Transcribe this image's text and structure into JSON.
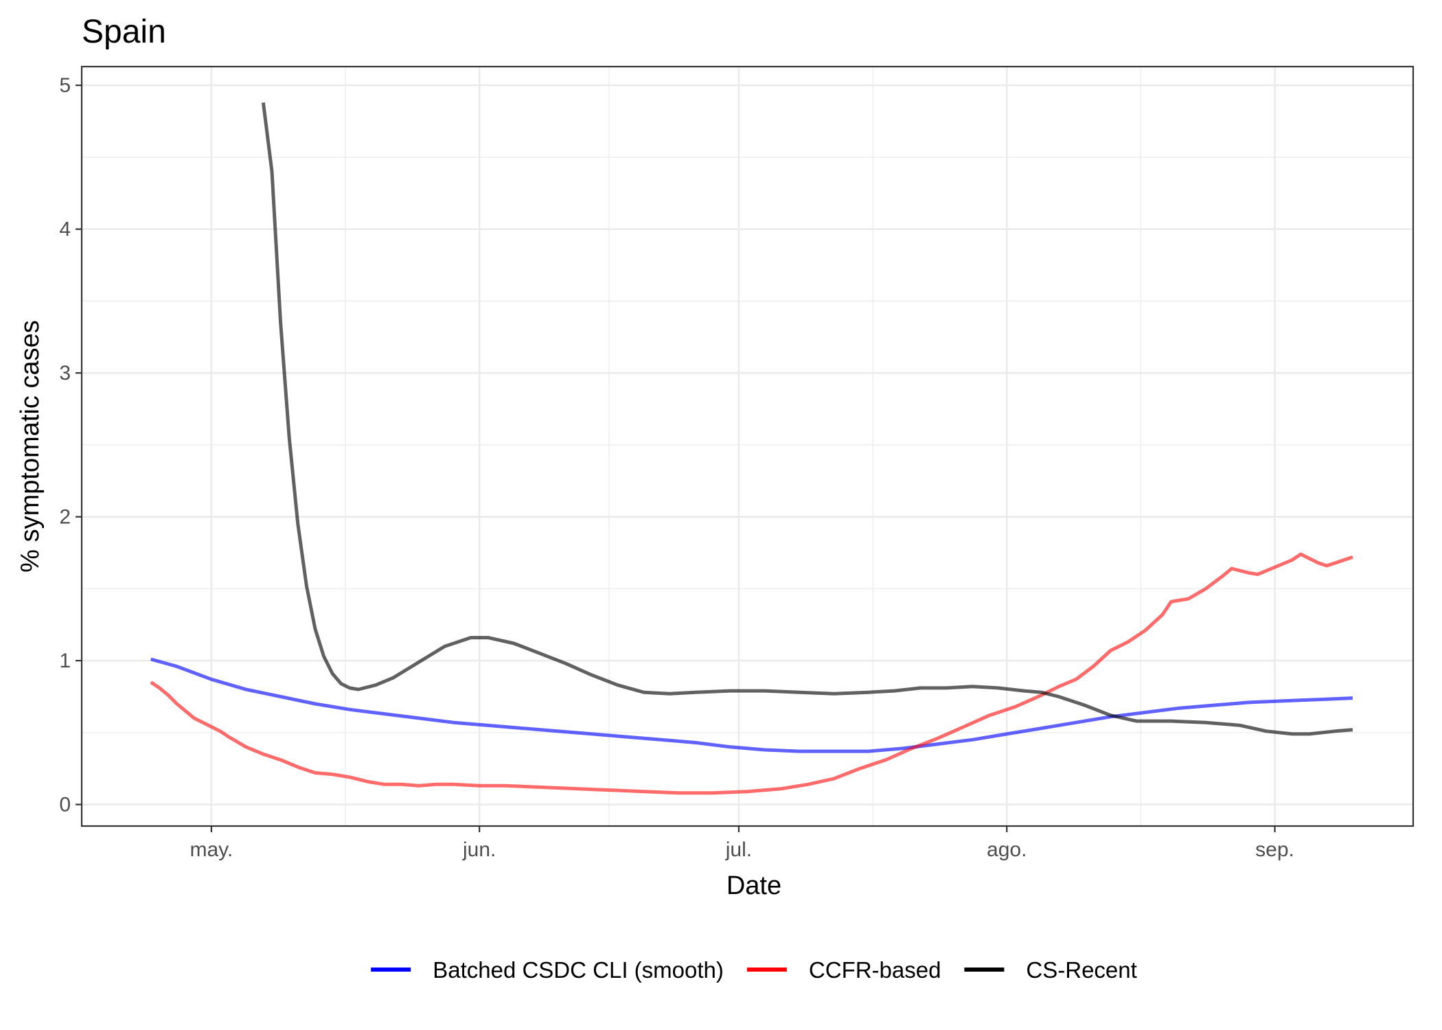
{
  "chart_data": {
    "type": "line",
    "title": "Spain",
    "xlabel": "Date",
    "ylabel": "% symptomatic cases",
    "xlim": [
      "2020-04-16",
      "2020-09-17"
    ],
    "ylim": [
      -0.15,
      5.13
    ],
    "x_ticks": [
      {
        "date": "2020-05-01",
        "label": "may."
      },
      {
        "date": "2020-06-01",
        "label": "jun."
      },
      {
        "date": "2020-07-01",
        "label": "jul."
      },
      {
        "date": "2020-08-01",
        "label": "ago."
      },
      {
        "date": "2020-09-01",
        "label": "sep."
      }
    ],
    "y_ticks": [
      0,
      1,
      2,
      3,
      4,
      5
    ],
    "grid": true,
    "legend_position": "bottom",
    "series": [
      {
        "name": "Batched CSDC CLI (smooth)",
        "color": "#0000FF",
        "legend_color": "#0000FF",
        "opacity": 0.62,
        "points": [
          [
            "2020-04-24",
            1.01
          ],
          [
            "2020-04-27",
            0.96
          ],
          [
            "2020-05-01",
            0.87
          ],
          [
            "2020-05-05",
            0.8
          ],
          [
            "2020-05-09",
            0.75
          ],
          [
            "2020-05-13",
            0.7
          ],
          [
            "2020-05-17",
            0.66
          ],
          [
            "2020-05-21",
            0.63
          ],
          [
            "2020-05-25",
            0.6
          ],
          [
            "2020-05-29",
            0.57
          ],
          [
            "2020-06-02",
            0.55
          ],
          [
            "2020-06-06",
            0.53
          ],
          [
            "2020-06-10",
            0.51
          ],
          [
            "2020-06-14",
            0.49
          ],
          [
            "2020-06-18",
            0.47
          ],
          [
            "2020-06-22",
            0.45
          ],
          [
            "2020-06-26",
            0.43
          ],
          [
            "2020-06-30",
            0.4
          ],
          [
            "2020-07-04",
            0.38
          ],
          [
            "2020-07-08",
            0.37
          ],
          [
            "2020-07-12",
            0.37
          ],
          [
            "2020-07-16",
            0.37
          ],
          [
            "2020-07-20",
            0.39
          ],
          [
            "2020-07-24",
            0.42
          ],
          [
            "2020-07-28",
            0.45
          ],
          [
            "2020-08-01",
            0.49
          ],
          [
            "2020-08-05",
            0.53
          ],
          [
            "2020-08-09",
            0.57
          ],
          [
            "2020-08-13",
            0.61
          ],
          [
            "2020-08-17",
            0.64
          ],
          [
            "2020-08-21",
            0.67
          ],
          [
            "2020-08-25",
            0.69
          ],
          [
            "2020-08-29",
            0.71
          ],
          [
            "2020-09-02",
            0.72
          ],
          [
            "2020-09-06",
            0.73
          ],
          [
            "2020-09-10",
            0.74
          ]
        ]
      },
      {
        "name": "CCFR-based",
        "color": "#FF0000",
        "legend_color": "#FF0000",
        "opacity": 0.58,
        "points": [
          [
            "2020-04-24",
            0.85
          ],
          [
            "2020-04-25",
            0.81
          ],
          [
            "2020-04-26",
            0.76
          ],
          [
            "2020-04-27",
            0.7
          ],
          [
            "2020-04-28",
            0.65
          ],
          [
            "2020-04-29",
            0.6
          ],
          [
            "2020-04-30",
            0.57
          ],
          [
            "2020-05-01",
            0.54
          ],
          [
            "2020-05-02",
            0.51
          ],
          [
            "2020-05-03",
            0.47
          ],
          [
            "2020-05-05",
            0.4
          ],
          [
            "2020-05-07",
            0.35
          ],
          [
            "2020-05-09",
            0.31
          ],
          [
            "2020-05-11",
            0.26
          ],
          [
            "2020-05-13",
            0.22
          ],
          [
            "2020-05-15",
            0.21
          ],
          [
            "2020-05-17",
            0.19
          ],
          [
            "2020-05-19",
            0.16
          ],
          [
            "2020-05-21",
            0.14
          ],
          [
            "2020-05-23",
            0.14
          ],
          [
            "2020-05-25",
            0.13
          ],
          [
            "2020-05-27",
            0.14
          ],
          [
            "2020-05-29",
            0.14
          ],
          [
            "2020-06-01",
            0.13
          ],
          [
            "2020-06-04",
            0.13
          ],
          [
            "2020-06-08",
            0.12
          ],
          [
            "2020-06-12",
            0.11
          ],
          [
            "2020-06-16",
            0.1
          ],
          [
            "2020-06-20",
            0.09
          ],
          [
            "2020-06-24",
            0.08
          ],
          [
            "2020-06-28",
            0.08
          ],
          [
            "2020-07-02",
            0.09
          ],
          [
            "2020-07-06",
            0.11
          ],
          [
            "2020-07-09",
            0.14
          ],
          [
            "2020-07-12",
            0.18
          ],
          [
            "2020-07-15",
            0.25
          ],
          [
            "2020-07-18",
            0.31
          ],
          [
            "2020-07-21",
            0.39
          ],
          [
            "2020-07-24",
            0.46
          ],
          [
            "2020-07-27",
            0.54
          ],
          [
            "2020-07-30",
            0.62
          ],
          [
            "2020-08-02",
            0.68
          ],
          [
            "2020-08-05",
            0.76
          ],
          [
            "2020-08-07",
            0.82
          ],
          [
            "2020-08-09",
            0.87
          ],
          [
            "2020-08-11",
            0.96
          ],
          [
            "2020-08-13",
            1.07
          ],
          [
            "2020-08-15",
            1.13
          ],
          [
            "2020-08-17",
            1.21
          ],
          [
            "2020-08-19",
            1.32
          ],
          [
            "2020-08-20",
            1.41
          ],
          [
            "2020-08-22",
            1.43
          ],
          [
            "2020-08-24",
            1.5
          ],
          [
            "2020-08-26",
            1.59
          ],
          [
            "2020-08-27",
            1.64
          ],
          [
            "2020-08-29",
            1.61
          ],
          [
            "2020-08-30",
            1.6
          ],
          [
            "2020-09-01",
            1.65
          ],
          [
            "2020-09-03",
            1.7
          ],
          [
            "2020-09-04",
            1.74
          ],
          [
            "2020-09-06",
            1.68
          ],
          [
            "2020-09-07",
            1.66
          ],
          [
            "2020-09-08",
            1.68
          ],
          [
            "2020-09-10",
            1.72
          ]
        ]
      },
      {
        "name": "CS-Recent",
        "color": "#000000",
        "legend_color": "#000000",
        "opacity": 0.62,
        "points": [
          [
            "2020-05-07",
            4.88
          ],
          [
            "2020-05-08",
            4.4
          ],
          [
            "2020-05-09",
            3.35
          ],
          [
            "2020-05-10",
            2.55
          ],
          [
            "2020-05-11",
            1.95
          ],
          [
            "2020-05-12",
            1.52
          ],
          [
            "2020-05-13",
            1.22
          ],
          [
            "2020-05-14",
            1.03
          ],
          [
            "2020-05-15",
            0.91
          ],
          [
            "2020-05-16",
            0.84
          ],
          [
            "2020-05-17",
            0.81
          ],
          [
            "2020-05-18",
            0.8
          ],
          [
            "2020-05-20",
            0.83
          ],
          [
            "2020-05-22",
            0.88
          ],
          [
            "2020-05-25",
            0.99
          ],
          [
            "2020-05-28",
            1.1
          ],
          [
            "2020-05-31",
            1.16
          ],
          [
            "2020-06-02",
            1.16
          ],
          [
            "2020-06-05",
            1.12
          ],
          [
            "2020-06-08",
            1.05
          ],
          [
            "2020-06-11",
            0.98
          ],
          [
            "2020-06-14",
            0.9
          ],
          [
            "2020-06-17",
            0.83
          ],
          [
            "2020-06-20",
            0.78
          ],
          [
            "2020-06-23",
            0.77
          ],
          [
            "2020-06-26",
            0.78
          ],
          [
            "2020-06-30",
            0.79
          ],
          [
            "2020-07-04",
            0.79
          ],
          [
            "2020-07-08",
            0.78
          ],
          [
            "2020-07-12",
            0.77
          ],
          [
            "2020-07-16",
            0.78
          ],
          [
            "2020-07-19",
            0.79
          ],
          [
            "2020-07-22",
            0.81
          ],
          [
            "2020-07-25",
            0.81
          ],
          [
            "2020-07-28",
            0.82
          ],
          [
            "2020-07-31",
            0.81
          ],
          [
            "2020-08-03",
            0.79
          ],
          [
            "2020-08-05",
            0.78
          ],
          [
            "2020-08-07",
            0.75
          ],
          [
            "2020-08-10",
            0.69
          ],
          [
            "2020-08-13",
            0.62
          ],
          [
            "2020-08-16",
            0.58
          ],
          [
            "2020-08-20",
            0.58
          ],
          [
            "2020-08-24",
            0.57
          ],
          [
            "2020-08-28",
            0.55
          ],
          [
            "2020-08-31",
            0.51
          ],
          [
            "2020-09-03",
            0.49
          ],
          [
            "2020-09-05",
            0.49
          ],
          [
            "2020-09-08",
            0.51
          ],
          [
            "2020-09-10",
            0.52
          ]
        ]
      }
    ]
  }
}
